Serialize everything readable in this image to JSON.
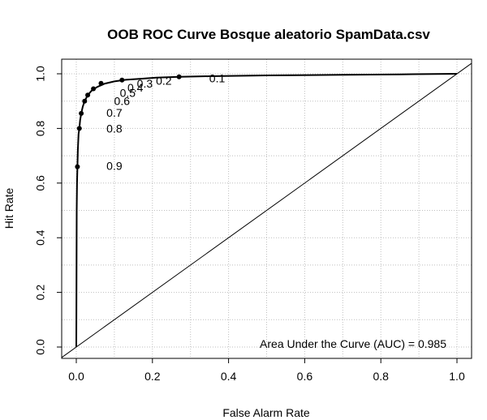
{
  "chart_data": {
    "type": "line",
    "title": "OOB ROC Curve Bosque aleatorio SpamData.csv",
    "xlabel": "False Alarm Rate",
    "ylabel": "Hit Rate",
    "xlim": [
      0,
      1
    ],
    "ylim": [
      0,
      1
    ],
    "x_ticks": [
      "0.0",
      "0.2",
      "0.4",
      "0.6",
      "0.8",
      "1.0"
    ],
    "y_ticks": [
      "0.0",
      "0.2",
      "0.4",
      "0.6",
      "0.8",
      "1.0"
    ],
    "x_tick_values": [
      0,
      0.2,
      0.4,
      0.6,
      0.8,
      1.0
    ],
    "y_tick_values": [
      0,
      0.2,
      0.4,
      0.6,
      0.8,
      1.0
    ],
    "grid": true,
    "annotation": "Area Under the Curve (AUC) = 0.985",
    "series": [
      {
        "x": [
          0,
          0.001,
          0.002,
          0.003,
          0.004,
          0.006,
          0.008,
          0.01,
          0.013,
          0.017,
          0.022,
          0.03,
          0.04,
          0.055,
          0.075,
          0.1,
          0.13,
          0.17,
          0.21,
          0.27,
          0.35,
          0.5,
          0.7,
          0.85,
          1.0
        ],
        "y": [
          0,
          0.5,
          0.6,
          0.66,
          0.72,
          0.78,
          0.8,
          0.83,
          0.855,
          0.88,
          0.9,
          0.922,
          0.938,
          0.952,
          0.964,
          0.972,
          0.978,
          0.982,
          0.986,
          0.989,
          0.991,
          0.994,
          0.996,
          0.998,
          1.0
        ]
      }
    ],
    "threshold_points": [
      {
        "label": "0.9",
        "x": 0.003,
        "y": 0.66
      },
      {
        "label": "0.8",
        "x": 0.008,
        "y": 0.8
      },
      {
        "label": "0.7",
        "x": 0.013,
        "y": 0.855
      },
      {
        "label": "0.6",
        "x": 0.022,
        "y": 0.9
      },
      {
        "label": "0.5",
        "x": 0.03,
        "y": 0.922
      },
      {
        "label": "0.4",
        "x": 0.045,
        "y": 0.945
      },
      {
        "label": "0.3",
        "x": 0.065,
        "y": 0.965
      },
      {
        "label": "0.2",
        "x": 0.12,
        "y": 0.977
      },
      {
        "label": "0.1",
        "x": 0.27,
        "y": 0.989
      }
    ],
    "threshold_label_positions": [
      {
        "label": "0.9",
        "x": 0.1,
        "y": 0.663
      },
      {
        "label": "0.8",
        "x": 0.1,
        "y": 0.8
      },
      {
        "label": "0.7",
        "x": 0.1,
        "y": 0.858
      },
      {
        "label": "0.6",
        "x": 0.12,
        "y": 0.9
      },
      {
        "label": "0.5",
        "x": 0.135,
        "y": 0.93
      },
      {
        "label": "0.4",
        "x": 0.155,
        "y": 0.95
      },
      {
        "label": "0.3",
        "x": 0.18,
        "y": 0.965
      },
      {
        "label": "0.2",
        "x": 0.23,
        "y": 0.975
      },
      {
        "label": "0.1",
        "x": 0.37,
        "y": 0.983
      }
    ]
  }
}
